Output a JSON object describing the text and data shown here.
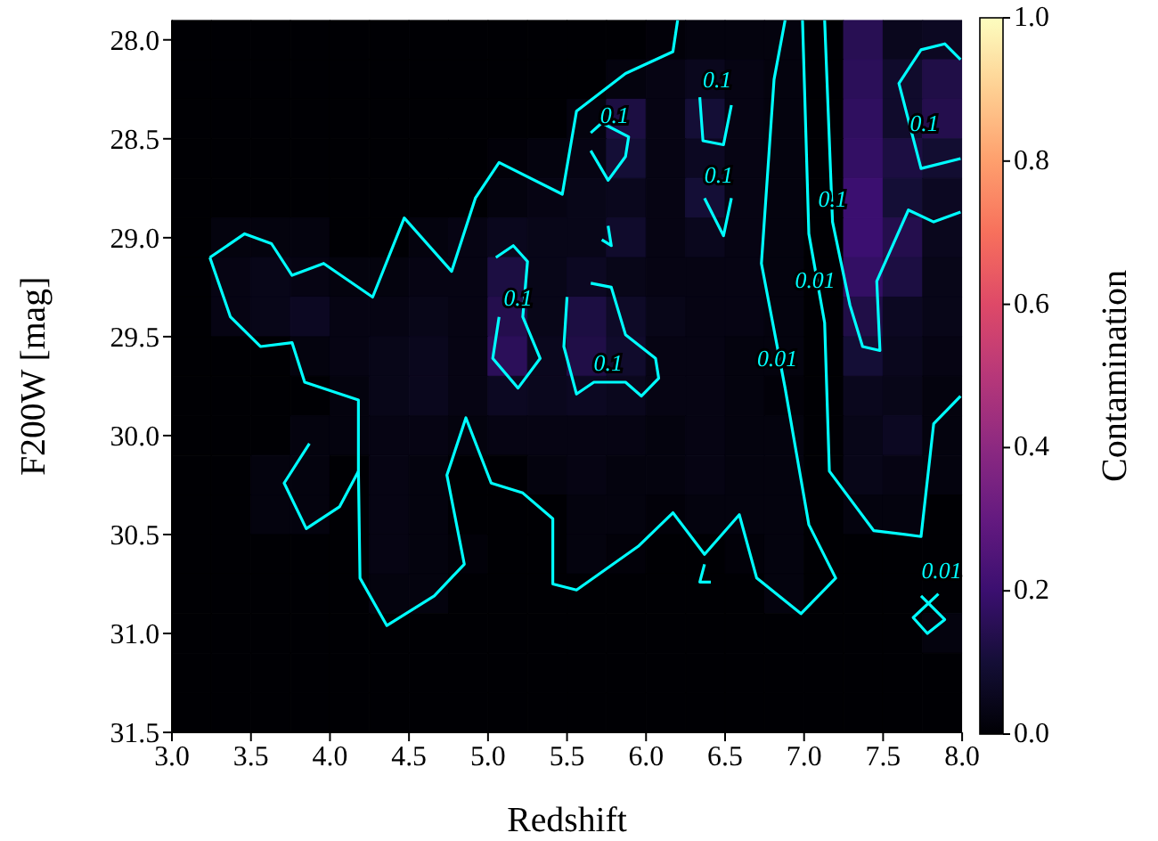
{
  "chart_data": {
    "type": "heatmap",
    "xlabel": "Redshift",
    "ylabel": "F200W [mag]",
    "clabel": "Contamination",
    "x": [
      3.125,
      3.375,
      3.625,
      3.875,
      4.125,
      4.375,
      4.625,
      4.875,
      5.125,
      5.375,
      5.625,
      5.875,
      6.125,
      6.375,
      6.625,
      6.875,
      7.125,
      7.375,
      7.625,
      7.875
    ],
    "y": [
      28.0,
      28.2,
      28.4,
      28.6,
      28.8,
      29.0,
      29.2,
      29.4,
      29.6,
      29.8,
      30.0,
      30.2,
      30.4,
      30.6,
      30.8,
      31.0,
      31.2,
      31.4
    ],
    "xlim": [
      3.0,
      8.0
    ],
    "xticks": [
      {
        "value": 3,
        "label": "3.0"
      },
      3.5,
      {
        "value": 4,
        "label": "4.0"
      },
      4.5,
      {
        "value": 5,
        "label": "5.0"
      },
      5.5,
      {
        "value": 6,
        "label": "6.0"
      },
      6.5,
      {
        "value": 7,
        "label": "7.0"
      },
      7.5,
      {
        "value": 8,
        "label": "8.0"
      }
    ],
    "ylim": [
      31.5,
      27.9
    ],
    "yticks": [
      {
        "value": 28,
        "label": "28.0"
      },
      28.5,
      {
        "value": 29,
        "label": "29.0"
      },
      29.5,
      {
        "value": 30,
        "label": "30.0"
      },
      30.5,
      {
        "value": 31,
        "label": "31.0"
      },
      31.5
    ],
    "clim": [
      0,
      1
    ],
    "cticks": [
      {
        "value": 0,
        "label": "0.0"
      },
      0.2,
      0.4,
      0.6,
      0.8,
      {
        "value": 1,
        "label": "1.0"
      }
    ],
    "cells": [
      [
        0,
        0,
        0,
        0,
        0,
        0,
        0,
        0,
        0,
        0,
        0,
        0,
        0.01,
        0.02,
        0.02,
        0.02,
        0,
        0.15,
        0.05,
        0.06
      ],
      [
        0,
        0,
        0,
        0,
        0,
        0,
        0,
        0,
        0,
        0,
        0,
        0.02,
        0.03,
        0.05,
        0.03,
        0.02,
        0,
        0.16,
        0.08,
        0.13
      ],
      [
        0,
        0,
        0,
        0,
        0,
        0,
        0,
        0,
        0,
        0,
        0.02,
        0.12,
        0.03,
        0.1,
        0.03,
        0.02,
        0,
        0.17,
        0.08,
        0.14
      ],
      [
        0,
        0,
        0,
        0,
        0,
        0,
        0,
        0,
        0.01,
        0.02,
        0.03,
        0.1,
        0.03,
        0.06,
        0.03,
        0.02,
        0,
        0.18,
        0.12,
        0.09
      ],
      [
        0,
        0,
        0,
        0,
        0,
        0,
        0,
        0,
        0.02,
        0.03,
        0.04,
        0.05,
        0.03,
        0.1,
        0.03,
        0.02,
        0,
        0.2,
        0.1,
        0.06
      ],
      [
        0,
        0.02,
        0.02,
        0.02,
        0,
        0,
        0.02,
        0.03,
        0.05,
        0.04,
        0.04,
        0.08,
        0.03,
        0.05,
        0.03,
        0.02,
        0,
        0.2,
        0.14,
        0.05
      ],
      [
        0,
        0.03,
        0.04,
        0.03,
        0.02,
        0.02,
        0.03,
        0.03,
        0.12,
        0.04,
        0.06,
        0.04,
        0.03,
        0.03,
        0.03,
        0.02,
        0,
        0.18,
        0.12,
        0.04
      ],
      [
        0,
        0.03,
        0.04,
        0.06,
        0.03,
        0.03,
        0.04,
        0.03,
        0.14,
        0.04,
        0.12,
        0.07,
        0.04,
        0.03,
        0.03,
        0.02,
        0,
        0.13,
        0.06,
        0.04
      ],
      [
        0,
        0,
        0,
        0.02,
        0.03,
        0.04,
        0.05,
        0.03,
        0.16,
        0.05,
        0.13,
        0.08,
        0.03,
        0.03,
        0.02,
        0.02,
        0,
        0.1,
        0.05,
        0.03
      ],
      [
        0,
        0,
        0,
        0,
        0.02,
        0.04,
        0.05,
        0.03,
        0.06,
        0.05,
        0.06,
        0.05,
        0.03,
        0.03,
        0.02,
        0.01,
        0,
        0.05,
        0.04,
        0.02
      ],
      [
        0,
        0,
        0,
        0.02,
        0.02,
        0.03,
        0.03,
        0.02,
        0.03,
        0.03,
        0.03,
        0.03,
        0.02,
        0.03,
        0.02,
        0.02,
        0,
        0.04,
        0.06,
        0.02
      ],
      [
        0,
        0,
        0.02,
        0.02,
        0,
        0.03,
        0.02,
        0,
        0,
        0.02,
        0.03,
        0.02,
        0.02,
        0.03,
        0.02,
        0.02,
        0,
        0.04,
        0.03,
        0.02
      ],
      [
        0,
        0,
        0.02,
        0.02,
        0,
        0.03,
        0.02,
        0,
        0,
        0,
        0.02,
        0.02,
        0.01,
        0.02,
        0.02,
        0.02,
        0,
        0.02,
        0.02,
        0
      ],
      [
        0,
        0,
        0,
        0,
        0,
        0.03,
        0.02,
        0.01,
        0,
        0,
        0.02,
        0.01,
        0,
        0,
        0.01,
        0.02,
        0,
        0,
        0,
        0
      ],
      [
        0,
        0,
        0,
        0,
        0,
        0.02,
        0.02,
        0,
        0,
        0,
        0,
        0,
        0,
        0,
        0,
        0.02,
        0,
        0,
        0,
        0
      ],
      [
        0,
        0,
        0,
        0,
        0,
        0,
        0,
        0,
        0,
        0,
        0,
        0,
        0,
        0,
        0,
        0,
        0,
        0,
        0,
        0.02
      ],
      [
        0,
        0,
        0,
        0,
        0,
        0,
        0,
        0,
        0,
        0,
        0,
        0,
        0,
        0,
        0,
        0,
        0,
        0,
        0,
        0
      ],
      [
        0,
        0,
        0,
        0,
        0,
        0,
        0,
        0,
        0,
        0,
        0,
        0,
        0,
        0,
        0,
        0,
        0,
        0,
        0,
        0
      ]
    ],
    "series": [
      {
        "type": "line",
        "color": "#00ffff",
        "x": [
          3.24,
          3.46,
          3.63,
          3.76,
          3.96,
          4.27,
          4.47,
          4.77,
          4.92,
          5.07,
          5.47,
          5.56,
          5.87,
          6.17,
          6.2
        ],
        "values": [
          29.1,
          28.98,
          29.03,
          29.19,
          29.13,
          29.3,
          28.9,
          29.17,
          28.8,
          28.62,
          28.78,
          28.36,
          28.17,
          28.06,
          27.9
        ]
      },
      {
        "type": "line",
        "color": "#00ffff",
        "x": [
          3.24,
          3.37,
          3.56,
          3.76,
          3.84,
          4.18,
          4.18,
          4.19,
          4.36,
          4.66,
          4.85,
          4.74,
          4.86,
          5.02,
          5.22,
          5.41,
          5.41,
          5.56,
          5.95,
          6.17,
          6.37,
          6.59,
          6.7,
          6.98,
          7.2,
          7.03,
          6.88,
          6.73,
          6.81,
          6.88
        ],
        "values": [
          29.1,
          29.4,
          29.55,
          29.53,
          29.73,
          29.82,
          30.18,
          30.72,
          30.96,
          30.81,
          30.65,
          30.2,
          29.91,
          30.24,
          30.29,
          30.42,
          30.75,
          30.78,
          30.56,
          30.39,
          30.6,
          30.4,
          30.72,
          30.9,
          30.72,
          30.45,
          29.76,
          29.13,
          28.2,
          27.9
        ]
      },
      {
        "type": "line",
        "color": "#00ffff",
        "x": [
          3.87,
          3.71,
          3.85,
          4.06,
          4.18
        ],
        "values": [
          30.04,
          30.24,
          30.47,
          30.36,
          30.18
        ]
      },
      {
        "type": "line",
        "color": "#00ffff",
        "x": [
          6.99,
          7.03,
          7.13,
          7.16,
          7.44,
          7.74,
          7.82,
          7.99
        ],
        "values": [
          27.9,
          28.98,
          29.43,
          30.18,
          30.48,
          30.51,
          29.94,
          29.8
        ]
      },
      {
        "type": "line",
        "color": "#00ffff",
        "x": [
          7.74,
          7.89,
          7.78,
          7.69,
          7.85
        ],
        "values": [
          30.81,
          30.93,
          31.0,
          30.92,
          30.8
        ]
      },
      {
        "type": "line",
        "color": "#00ffff",
        "x": [
          6.37,
          6.34,
          6.41
        ],
        "values": [
          30.65,
          30.74,
          30.74
        ]
      },
      {
        "type": "line",
        "color": "#00ffff",
        "x": [
          5.05,
          5.16,
          5.25,
          5.22,
          5.33,
          5.19,
          5.03,
          5.07
        ],
        "values": [
          29.1,
          29.04,
          29.12,
          29.4,
          29.61,
          29.76,
          29.61,
          29.4
        ]
      },
      {
        "type": "line",
        "color": "#00ffff",
        "x": [
          5.65,
          5.72,
          5.89,
          5.87,
          5.76,
          5.65
        ],
        "values": [
          28.47,
          28.42,
          28.49,
          28.59,
          28.71,
          28.56
        ]
      },
      {
        "type": "line",
        "color": "#00ffff",
        "x": [
          6.34,
          6.36,
          6.49,
          6.54
        ],
        "values": [
          28.29,
          28.51,
          28.53,
          28.33
        ]
      },
      {
        "type": "line",
        "color": "#00ffff",
        "x": [
          6.37,
          6.49,
          6.54
        ],
        "values": [
          28.8,
          28.99,
          28.8
        ]
      },
      {
        "type": "line",
        "color": "#00ffff",
        "x": [
          5.76,
          5.78,
          5.72
        ],
        "values": [
          28.94,
          29.04,
          29.01
        ]
      },
      {
        "type": "line",
        "color": "#00ffff",
        "x": [
          5.65,
          5.78,
          5.87,
          6.06,
          6.08,
          5.97,
          5.87,
          5.67,
          5.56,
          5.48,
          5.5
        ],
        "values": [
          29.23,
          29.25,
          29.49,
          29.61,
          29.71,
          29.8,
          29.73,
          29.73,
          29.79,
          29.55,
          29.3
        ]
      },
      {
        "type": "line",
        "color": "#00ffff",
        "x": [
          7.13,
          7.18,
          7.29,
          7.37,
          7.48,
          7.46,
          7.66,
          7.82,
          7.99
        ],
        "values": [
          27.9,
          28.92,
          29.34,
          29.55,
          29.57,
          29.22,
          28.86,
          28.92,
          28.87
        ]
      },
      {
        "type": "line",
        "color": "#00ffff",
        "x": [
          7.99,
          7.74,
          7.6,
          7.74,
          7.89,
          7.99
        ],
        "values": [
          28.6,
          28.65,
          28.22,
          28.05,
          28.02,
          28.1
        ]
      }
    ],
    "annotations": [
      "0.1",
      "0.1",
      "0.1",
      "0.1",
      "0.1",
      {
        "text": "0.1",
        "x": 7.18,
        "y": 28.8
      },
      "0.1",
      {
        "text": "0.01",
        "x": 7.07,
        "y": 29.21
      },
      {
        "text": "0.01",
        "x": 6.83,
        "y": 29.61
      },
      "0.01"
    ]
  }
}
